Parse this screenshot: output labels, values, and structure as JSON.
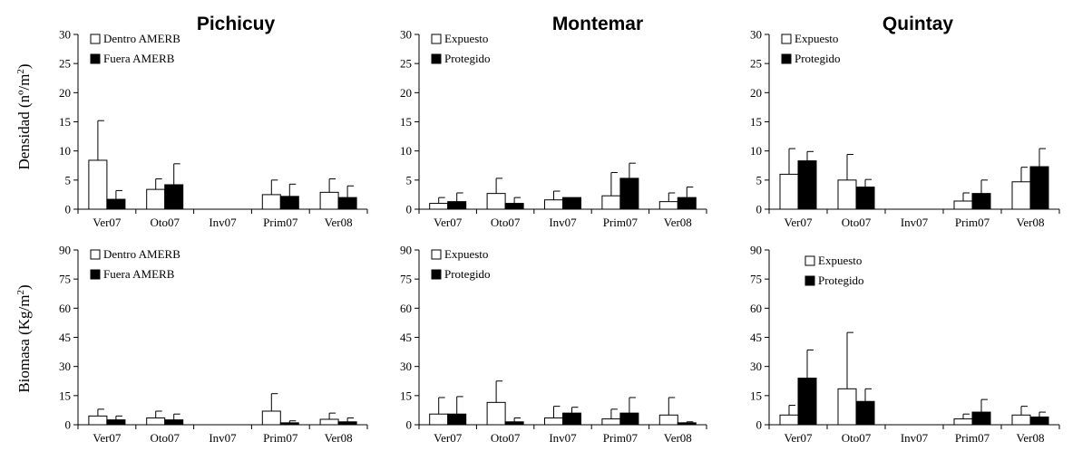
{
  "figure": {
    "col_titles": [
      "Pichicuy",
      "Montemar",
      "Quintay"
    ],
    "row_labels": [
      {
        "main": "Densidad (nº/m",
        "sup": "2",
        "end": ")"
      },
      {
        "main": "Biomasa (Kg/m",
        "sup": "2",
        "end": ")"
      }
    ]
  },
  "chart_data": [
    {
      "type": "bar",
      "site": "Pichicuy",
      "row": "Densidad",
      "categories": [
        "Ver07",
        "Oto07",
        "Inv07",
        "Prim07",
        "Ver08"
      ],
      "ylim": [
        0,
        30
      ],
      "yticks": [
        0,
        5,
        10,
        15,
        20,
        25,
        30
      ],
      "legend": "top-left",
      "series": [
        {
          "name": "Dentro AMERB",
          "color": "#ffffff",
          "values": [
            8.4,
            3.4,
            0,
            2.5,
            2.9
          ],
          "errors": [
            6.8,
            1.8,
            0,
            2.5,
            2.3
          ]
        },
        {
          "name": "Fuera AMERB",
          "color": "#000000",
          "values": [
            1.7,
            4.2,
            0,
            2.2,
            2.0
          ],
          "errors": [
            1.5,
            3.6,
            0,
            2.1,
            2.0
          ]
        }
      ]
    },
    {
      "type": "bar",
      "site": "Montemar",
      "row": "Densidad",
      "categories": [
        "Ver07",
        "Oto07",
        "Inv07",
        "Prim07",
        "Ver08"
      ],
      "ylim": [
        0,
        30
      ],
      "yticks": [
        0,
        5,
        10,
        15,
        20,
        25,
        30
      ],
      "legend": "top-left",
      "series": [
        {
          "name": "Expuesto",
          "color": "#ffffff",
          "values": [
            1.0,
            2.7,
            1.6,
            2.3,
            1.3
          ],
          "errors": [
            1.0,
            2.6,
            1.5,
            4.0,
            1.5
          ]
        },
        {
          "name": "Protegido",
          "color": "#000000",
          "values": [
            1.3,
            1.0,
            2.0,
            5.3,
            2.0
          ],
          "errors": [
            1.5,
            1.0,
            0,
            2.6,
            1.8
          ]
        }
      ]
    },
    {
      "type": "bar",
      "site": "Quintay",
      "row": "Densidad",
      "categories": [
        "Ver07",
        "Oto07",
        "Inv07",
        "Prim07",
        "Ver08"
      ],
      "ylim": [
        0,
        30
      ],
      "yticks": [
        0,
        5,
        10,
        15,
        20,
        25,
        30
      ],
      "legend": "top-left",
      "series": [
        {
          "name": "Expuesto",
          "color": "#ffffff",
          "values": [
            6.0,
            5.0,
            0,
            1.4,
            4.7
          ],
          "errors": [
            4.4,
            4.4,
            0,
            1.4,
            2.5
          ]
        },
        {
          "name": "Protegido",
          "color": "#000000",
          "values": [
            8.3,
            3.8,
            0,
            2.7,
            7.3
          ],
          "errors": [
            1.6,
            1.3,
            0,
            2.3,
            3.1
          ]
        }
      ]
    },
    {
      "type": "bar",
      "site": "Pichicuy",
      "row": "Biomasa",
      "categories": [
        "Ver07",
        "Oto07",
        "Inv07",
        "Prim07",
        "Ver08"
      ],
      "ylim": [
        0,
        90
      ],
      "yticks": [
        0,
        15,
        30,
        45,
        60,
        75,
        90
      ],
      "legend": "top-left",
      "series": [
        {
          "name": "Dentro AMERB",
          "color": "#ffffff",
          "values": [
            4.5,
            3.5,
            0,
            7.0,
            2.8
          ],
          "errors": [
            3.5,
            3.5,
            0,
            9.0,
            3.2
          ]
        },
        {
          "name": "Fuera AMERB",
          "color": "#000000",
          "values": [
            2.5,
            2.5,
            0,
            1.0,
            1.5
          ],
          "errors": [
            2.0,
            3.0,
            0,
            1.0,
            2.0
          ]
        }
      ]
    },
    {
      "type": "bar",
      "site": "Montemar",
      "row": "Biomasa",
      "categories": [
        "Ver07",
        "Oto07",
        "Inv07",
        "Prim07",
        "Ver08"
      ],
      "ylim": [
        0,
        90
      ],
      "yticks": [
        0,
        15,
        30,
        45,
        60,
        75,
        90
      ],
      "legend": "top-left",
      "series": [
        {
          "name": "Expuesto",
          "color": "#ffffff",
          "values": [
            5.5,
            11.5,
            3.5,
            3.0,
            5.0
          ],
          "errors": [
            8.5,
            11.0,
            6.0,
            5.0,
            9.0
          ]
        },
        {
          "name": "Protegido",
          "color": "#000000",
          "values": [
            5.5,
            1.5,
            6.0,
            6.0,
            1.0
          ],
          "errors": [
            9.0,
            2.0,
            3.0,
            8.0,
            0.5
          ]
        }
      ]
    },
    {
      "type": "bar",
      "site": "Quintay",
      "row": "Biomasa",
      "categories": [
        "Ver07",
        "Oto07",
        "Inv07",
        "Prim07",
        "Ver08"
      ],
      "ylim": [
        0,
        90
      ],
      "yticks": [
        0,
        15,
        30,
        45,
        60,
        75,
        90
      ],
      "legend": "top-left",
      "series": [
        {
          "name": "Expuesto",
          "color": "#ffffff",
          "values": [
            5.0,
            18.5,
            0,
            3.0,
            5.0
          ],
          "errors": [
            5.0,
            29.0,
            0,
            2.5,
            4.5
          ]
        },
        {
          "name": "Protegido",
          "color": "#000000",
          "values": [
            24.0,
            12.0,
            0,
            6.5,
            4.0
          ],
          "errors": [
            14.5,
            6.5,
            0,
            6.5,
            2.5
          ]
        }
      ]
    }
  ]
}
